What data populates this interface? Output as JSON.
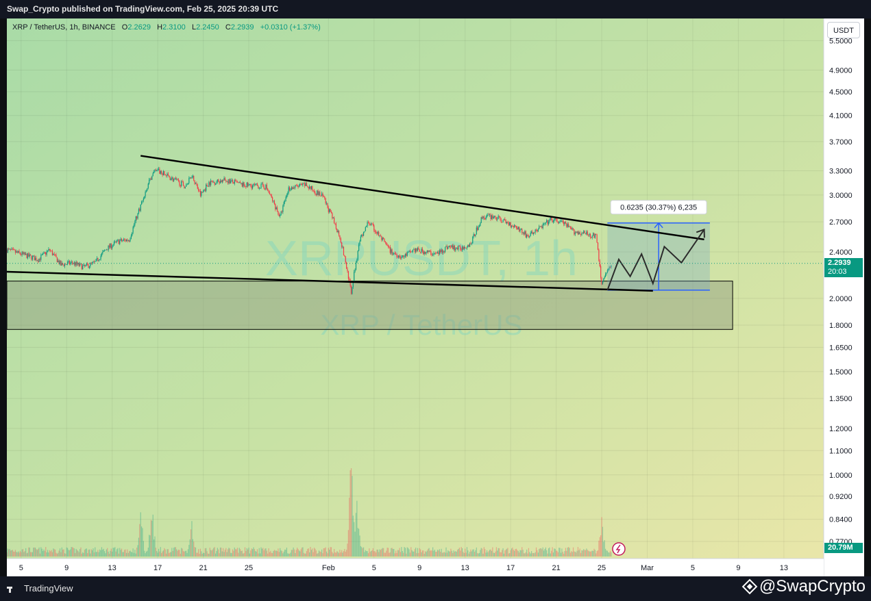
{
  "header": {
    "publish_line": "Swap_Crypto published on TradingView.com, Feb 25, 2025 20:39 UTC"
  },
  "legend": {
    "symbol": "XRP / TetherUS, 1h, BINANCE",
    "open_label": "O",
    "open": "2.2629",
    "high_label": "H",
    "high": "2.3100",
    "low_label": "L",
    "low": "2.2450",
    "close_label": "C",
    "close": "2.2939",
    "change": "+0.0310 (+1.37%)"
  },
  "unit_button": "USDT",
  "last_price": {
    "value": "2.2939",
    "countdown": "20:03"
  },
  "volume_tag": "20.79M",
  "footer": {
    "brand": "TradingView",
    "handle": "@SwapCrypto"
  },
  "chart_data": {
    "type": "candlestick",
    "watermark": [
      "XRPUSDT, 1h",
      "XRP / TetherUS"
    ],
    "y_scale": "log",
    "ylim": [
      0.72,
      6.0
    ],
    "y_ticks": [
      5.5,
      4.9,
      4.5,
      4.1,
      3.7,
      3.3,
      3.0,
      2.7,
      2.4,
      2.0,
      1.8,
      1.65,
      1.5,
      1.35,
      1.2,
      1.1,
      1.0,
      0.92,
      0.84,
      0.77
    ],
    "y_tick_labels": [
      "5.5000",
      "4.9000",
      "4.5000",
      "4.1000",
      "3.7000",
      "3.3000",
      "3.0000",
      "2.7000",
      "2.4000",
      "2.0000",
      "1.8000",
      "1.6500",
      "1.5000",
      "1.3500",
      "1.2000",
      "1.1000",
      "1.0000",
      "0.9200",
      "0.8400",
      "0.7700"
    ],
    "x_ticks": [
      "5",
      "9",
      "13",
      "17",
      "21",
      "25",
      "Feb",
      "5",
      "9",
      "13",
      "17",
      "21",
      "25",
      "Mar",
      "5",
      "9",
      "13"
    ],
    "x_tick_dates": [
      "2025-01-05",
      "2025-01-09",
      "2025-01-13",
      "2025-01-17",
      "2025-01-21",
      "2025-01-25",
      "2025-02-01",
      "2025-02-05",
      "2025-02-09",
      "2025-02-13",
      "2025-02-17",
      "2025-02-21",
      "2025-02-25",
      "2025-03-01",
      "2025-03-05",
      "2025-03-09",
      "2025-03-13"
    ],
    "x_range": [
      "2025-01-03T18:00",
      "2025-03-16T12:00"
    ],
    "price_path": [
      [
        "2025-01-03T18:00",
        2.42
      ],
      [
        "2025-01-05T00:00",
        2.38
      ],
      [
        "2025-01-06T12:00",
        2.33
      ],
      [
        "2025-01-07T12:00",
        2.42
      ],
      [
        "2025-01-08T12:00",
        2.28
      ],
      [
        "2025-01-09T12:00",
        2.3
      ],
      [
        "2025-01-10T12:00",
        2.26
      ],
      [
        "2025-01-11T12:00",
        2.3
      ],
      [
        "2025-01-12T12:00",
        2.43
      ],
      [
        "2025-01-13T12:00",
        2.5
      ],
      [
        "2025-01-14T12:00",
        2.52
      ],
      [
        "2025-01-15T12:00",
        2.88
      ],
      [
        "2025-01-16T12:00",
        3.25
      ],
      [
        "2025-01-17T00:00",
        3.3
      ],
      [
        "2025-01-18T12:00",
        3.18
      ],
      [
        "2025-01-19T12:00",
        3.1
      ],
      [
        "2025-01-20T00:00",
        3.25
      ],
      [
        "2025-01-20T18:00",
        3.0
      ],
      [
        "2025-01-21T12:00",
        3.15
      ],
      [
        "2025-01-23T00:00",
        3.18
      ],
      [
        "2025-01-24T12:00",
        3.12
      ],
      [
        "2025-01-26T12:00",
        3.1
      ],
      [
        "2025-01-27T18:00",
        2.75
      ],
      [
        "2025-01-28T12:00",
        3.08
      ],
      [
        "2025-01-30T00:00",
        3.12
      ],
      [
        "2025-01-31T12:00",
        2.98
      ],
      [
        "2025-02-02T00:00",
        2.55
      ],
      [
        "2025-02-03T00:00",
        2.05
      ],
      [
        "2025-02-03T18:00",
        2.5
      ],
      [
        "2025-02-04T12:00",
        2.7
      ],
      [
        "2025-02-05T12:00",
        2.55
      ],
      [
        "2025-02-06T12:00",
        2.4
      ],
      [
        "2025-02-07T12:00",
        2.35
      ],
      [
        "2025-02-08T12:00",
        2.42
      ],
      [
        "2025-02-09T12:00",
        2.4
      ],
      [
        "2025-02-10T12:00",
        2.38
      ],
      [
        "2025-02-11T12:00",
        2.45
      ],
      [
        "2025-02-12T12:00",
        2.43
      ],
      [
        "2025-02-13T12:00",
        2.48
      ],
      [
        "2025-02-14T12:00",
        2.75
      ],
      [
        "2025-02-15T12:00",
        2.76
      ],
      [
        "2025-02-16T12:00",
        2.7
      ],
      [
        "2025-02-17T12:00",
        2.65
      ],
      [
        "2025-02-18T12:00",
        2.55
      ],
      [
        "2025-02-19T12:00",
        2.63
      ],
      [
        "2025-02-20T12:00",
        2.72
      ],
      [
        "2025-02-21T12:00",
        2.7
      ],
      [
        "2025-02-22T12:00",
        2.6
      ],
      [
        "2025-02-23T12:00",
        2.58
      ],
      [
        "2025-02-24T12:00",
        2.55
      ],
      [
        "2025-02-25T00:00",
        2.12
      ],
      [
        "2025-02-25T12:00",
        2.22
      ],
      [
        "2025-02-25T20:00",
        2.2939
      ]
    ],
    "volume_spikes": [
      [
        "2025-01-15T12:00",
        0.35
      ],
      [
        "2025-01-16T12:00",
        0.4
      ],
      [
        "2025-01-20T00:00",
        0.3
      ],
      [
        "2025-02-03T00:00",
        0.85
      ],
      [
        "2025-02-03T12:00",
        0.45
      ],
      [
        "2025-02-25T00:00",
        0.33
      ]
    ],
    "drawings": {
      "resistance_line": [
        [
          "2025-01-15T12:00",
          3.5
        ],
        [
          "2025-03-06T00:00",
          2.52
        ]
      ],
      "support_line": [
        [
          "2025-01-03T18:00",
          2.22
        ],
        [
          "2025-03-01T12:00",
          2.06
        ]
      ],
      "demand_zone": {
        "x": [
          "2025-01-03T18:00",
          "2025-03-08T12:00"
        ],
        "y": [
          1.77,
          2.14
        ]
      },
      "measure_box": {
        "x": [
          "2025-02-25T12:00",
          "2025-03-06T12:00"
        ],
        "y": [
          2.065,
          2.6885
        ]
      },
      "measure_label": "0.6235 (30.37%) 6,235",
      "projection": [
        [
          "2025-02-25T12:00",
          2.065
        ],
        [
          "2025-02-26T12:00",
          2.33
        ],
        [
          "2025-02-27T12:00",
          2.18
        ],
        [
          "2025-02-28T12:00",
          2.38
        ],
        [
          "2025-03-01T12:00",
          2.12
        ],
        [
          "2025-03-02T12:00",
          2.45
        ],
        [
          "2025-03-04T00:00",
          2.3
        ],
        [
          "2025-03-06T00:00",
          2.62
        ]
      ]
    }
  }
}
